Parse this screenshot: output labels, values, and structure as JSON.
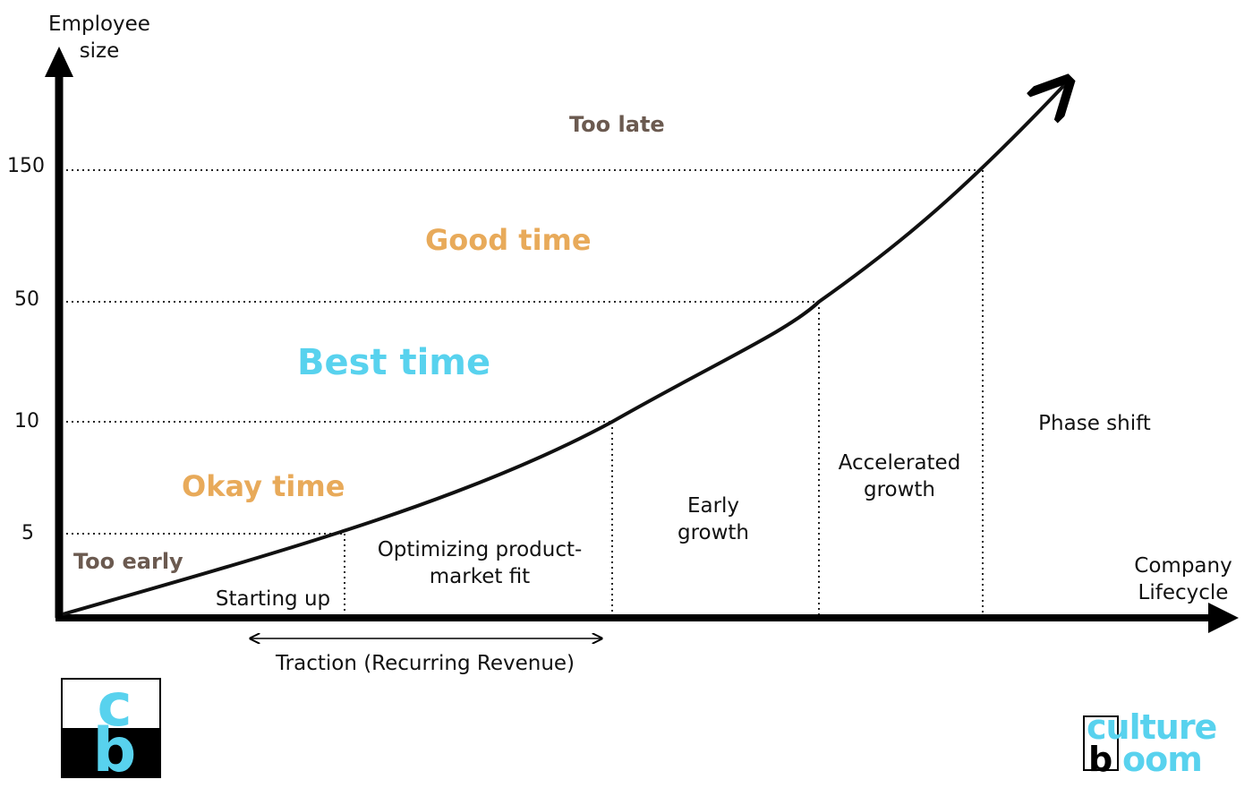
{
  "axes": {
    "y_label": "Employee\nsize",
    "x_label": "Company\nLifecycle",
    "y_ticks": [
      "150",
      "50",
      "10",
      "5"
    ]
  },
  "zones": {
    "too_late": "Too late",
    "good_time": "Good time",
    "best_time": "Best time",
    "okay_time": "Okay time",
    "too_early": "Too early"
  },
  "phases": {
    "starting_up": "Starting up",
    "optimizing": "Optimizing product-\nmarket fit",
    "early_growth": "Early\ngrowth",
    "accelerated_growth": "Accelerated\ngrowth",
    "phase_shift": "Phase shift"
  },
  "traction": "Traction (Recurring Revenue)",
  "colors": {
    "too": "#6b5a50",
    "good": "#e8aa5a",
    "best": "#58d2ee",
    "okay": "#e8aa5a",
    "axis": "#000000"
  },
  "logos": {
    "left_top": "c",
    "left_bottom": "b",
    "right_line1": "culture",
    "right_b": "b",
    "right_line2": "oom"
  }
}
